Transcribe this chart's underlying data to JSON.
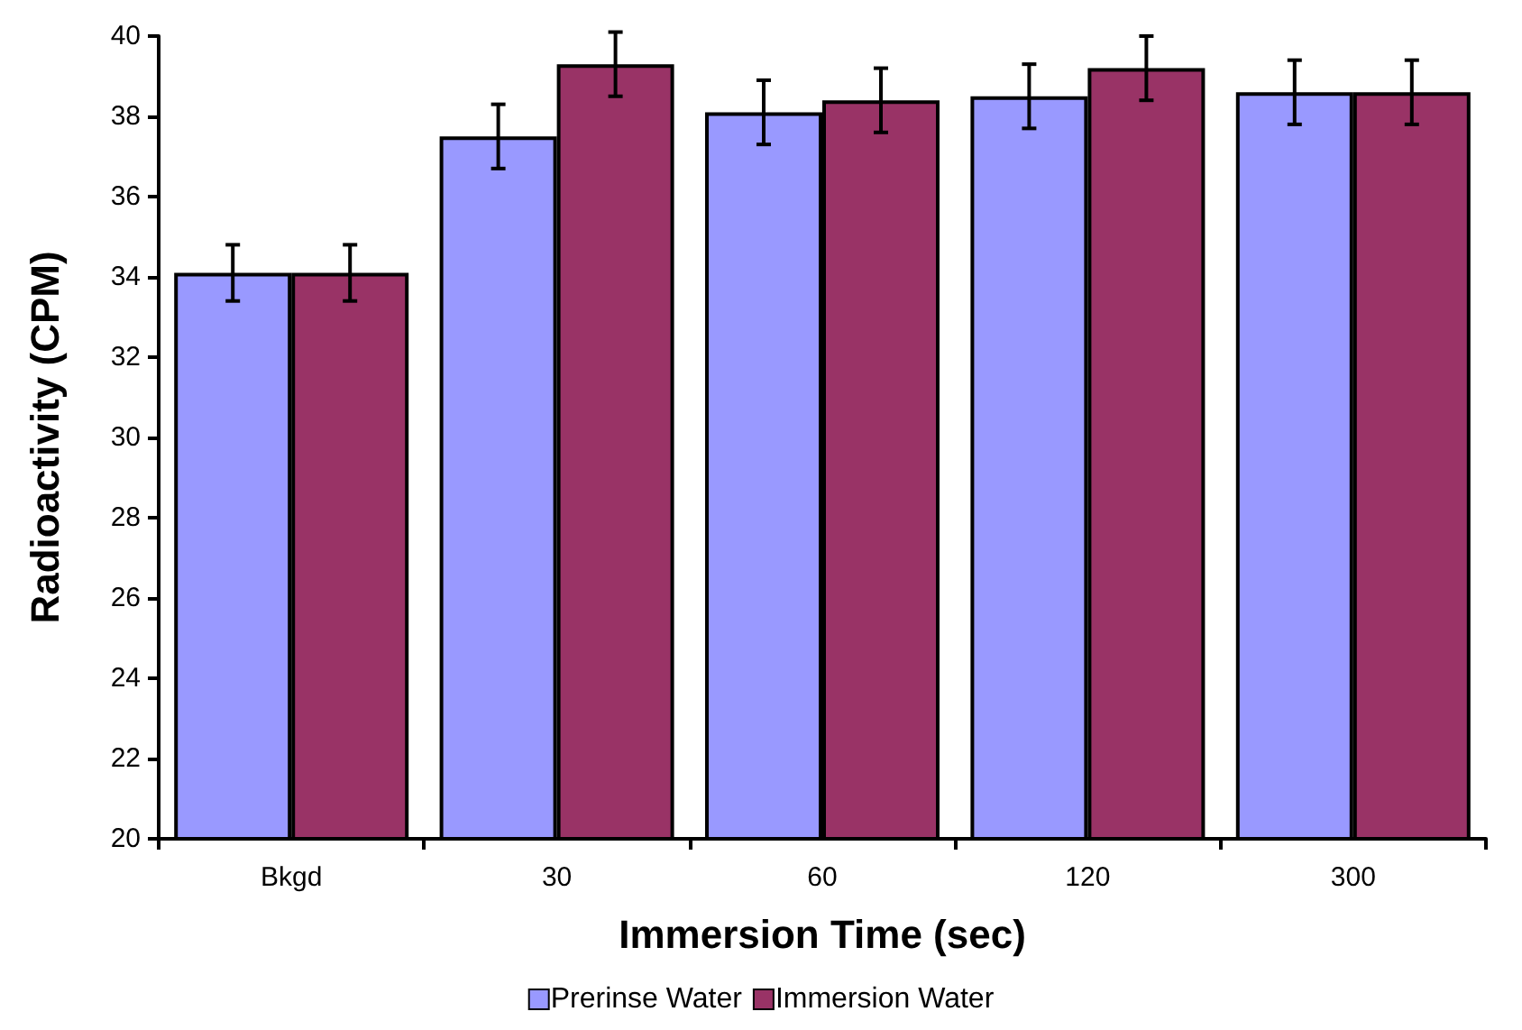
{
  "chart_data": {
    "type": "bar",
    "xlabel": "Immersion Time (sec)",
    "ylabel": "Radioactivity (CPM)",
    "categories": [
      "Bkgd",
      "30",
      "60",
      "120",
      "300"
    ],
    "series": [
      {
        "name": "Prerinse Water",
        "color": "#9999ff",
        "values": [
          34.1,
          37.5,
          38.1,
          38.5,
          38.6
        ],
        "errors": [
          0.7,
          0.8,
          0.8,
          0.8,
          0.8
        ]
      },
      {
        "name": "Immersion Water",
        "color": "#993366",
        "values": [
          34.1,
          39.3,
          38.4,
          39.2,
          38.6
        ],
        "errors": [
          0.7,
          0.8,
          0.8,
          0.8,
          0.8
        ]
      }
    ],
    "ylim": [
      20,
      40
    ],
    "yticks": [
      20,
      22,
      24,
      26,
      28,
      30,
      32,
      34,
      36,
      38,
      40
    ],
    "grid": false,
    "legend": "bottom"
  }
}
